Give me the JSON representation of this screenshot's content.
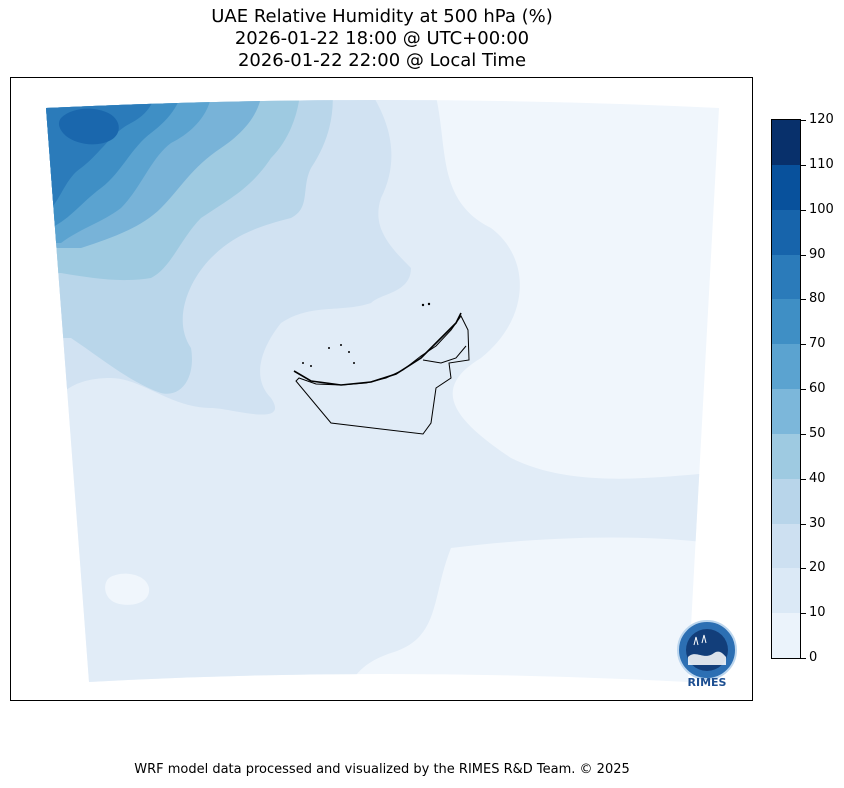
{
  "title": {
    "line1": "UAE Relative Humidity at 500 hPa (%)",
    "line2": "2026-01-22 18:00 @ UTC+00:00",
    "line3": "2026-01-22 22:00 @ Local Time"
  },
  "colorbar": {
    "labels": [
      "120",
      "110",
      "100",
      "90",
      "80",
      "70",
      "60",
      "50",
      "40",
      "30",
      "20",
      "10",
      "0"
    ],
    "colors": [
      "#08306b",
      "#08519c",
      "#1764ab",
      "#2b7bba",
      "#3f8fc5",
      "#5ba3d0",
      "#7cb7da",
      "#9ecae1",
      "#b8d5ea",
      "#cde0f1",
      "#dbe9f6",
      "#ebf3fb"
    ]
  },
  "map": {
    "region": "United Arab Emirates",
    "fill_colors": {
      "level_0_10": "#f0f6fc",
      "level_10_20": "#e1ecf7",
      "level_20_30": "#d1e2f2",
      "level_30_40": "#b9d6ea",
      "level_40_50": "#9ecae1",
      "level_50_60": "#78b3d8",
      "level_60_70": "#5ba3d0",
      "level_70_80": "#3f8fc5",
      "level_80_90": "#2b7bba",
      "level_90_100": "#1a67ad"
    },
    "boundary_color": "#000000"
  },
  "logo": {
    "text": "RIMES"
  },
  "footer": "WRF model data processed and visualized by the RIMES R&D Team. © 2025"
}
